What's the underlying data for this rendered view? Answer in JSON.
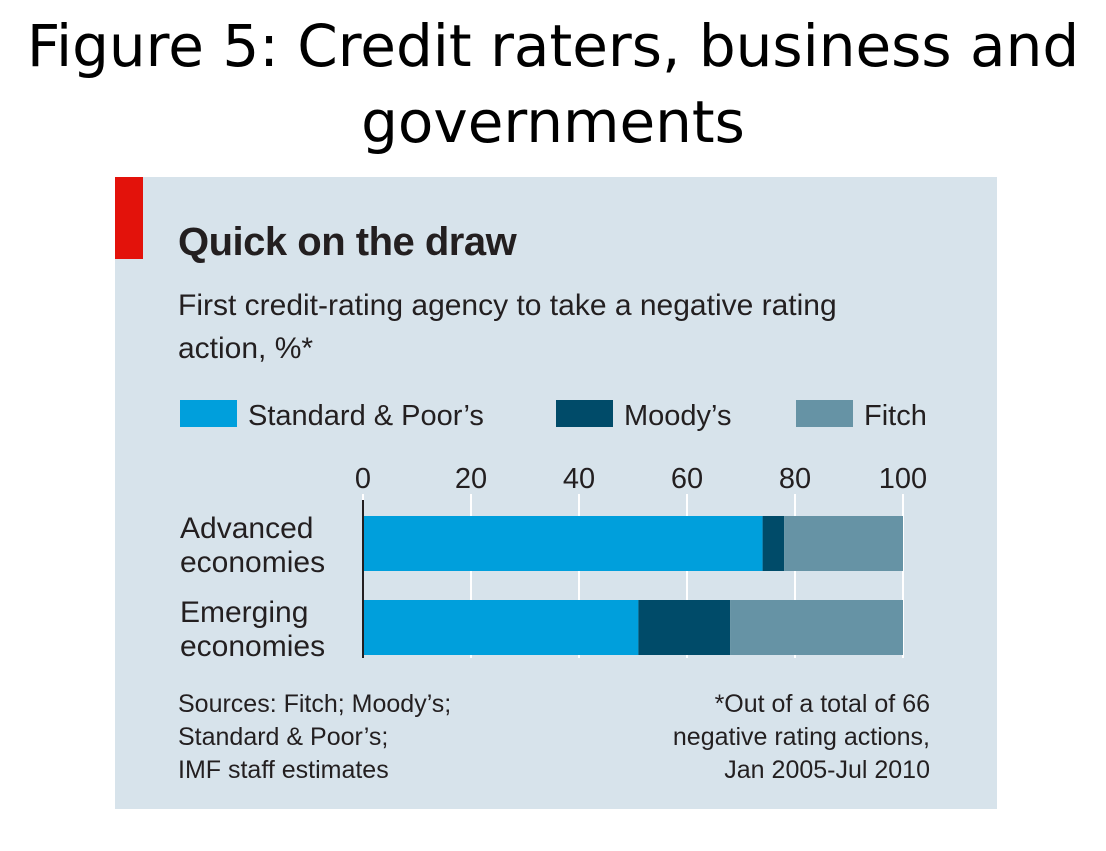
{
  "caption": "Figure 5: Credit raters, business and governments",
  "chart_data": {
    "type": "bar",
    "orientation": "horizontal",
    "stacked": true,
    "title": "Quick on the draw",
    "subtitle": "First credit-rating agency to take a negative rating action, %*",
    "categories": [
      "Advanced\neconomies",
      "Emerging\neconomies"
    ],
    "series": [
      {
        "name": "Standard & Poor’s",
        "color": "#009fdc",
        "values": [
          74,
          51
        ]
      },
      {
        "name": "Moody’s",
        "color": "#004b69",
        "values": [
          4,
          17
        ]
      },
      {
        "name": "Fitch",
        "color": "#6693a5",
        "values": [
          22,
          32
        ]
      }
    ],
    "xlim": [
      0,
      100
    ],
    "xticks": [
      0,
      20,
      40,
      60,
      80,
      100
    ],
    "xaxis_position": "top",
    "grid": true,
    "legend_position": "top",
    "source": "Sources: Fitch; Moody’s;\nStandard & Poor’s;\nIMF staff estimates",
    "note": "*Out of a total of 66\nnegative rating actions,\nJan 2005-Jul 2010"
  }
}
